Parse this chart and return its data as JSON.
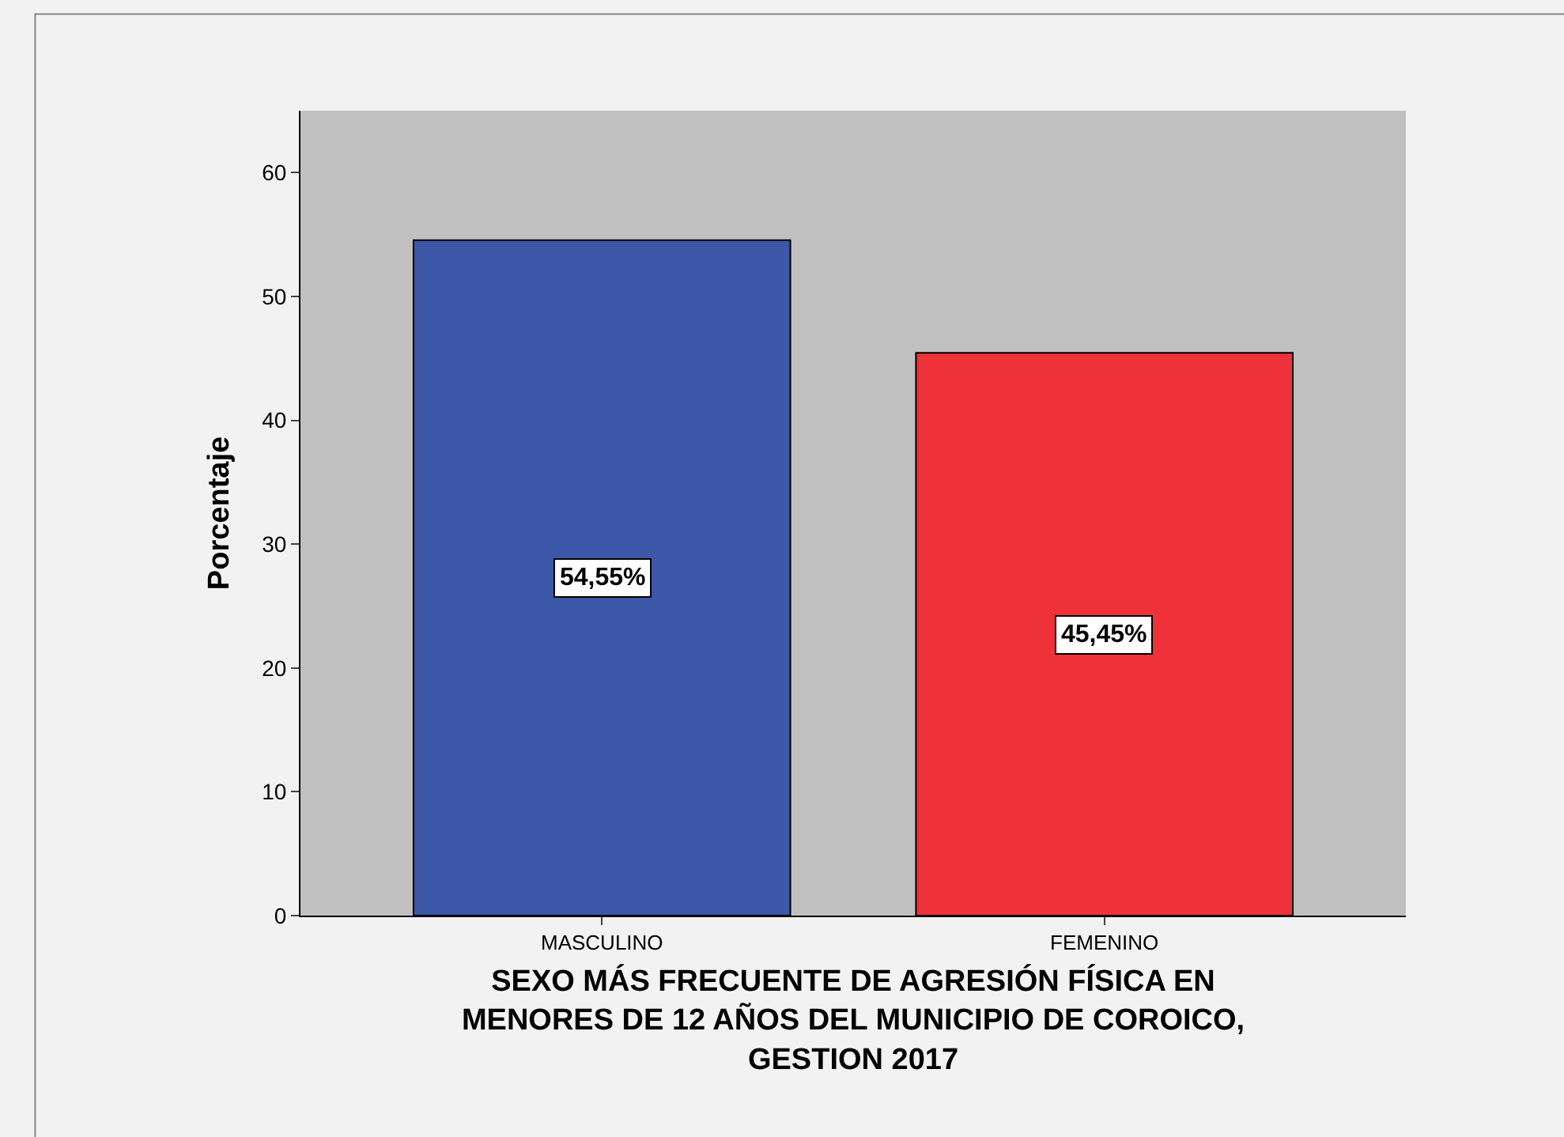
{
  "chart_data": {
    "type": "bar",
    "categories": [
      "MASCULINO",
      "FEMENINO"
    ],
    "values": [
      54.55,
      45.45
    ],
    "colors": [
      "#3c57a8",
      "#ef323a"
    ],
    "value_labels": [
      "54,55%",
      "45,45%"
    ],
    "ylabel": "Porcentaje",
    "xlabel": "SEXO MÁS FRECUENTE DE AGRESIÓN FÍSICA EN\nMENORES DE 12 AÑOS DEL MUNICIPIO DE COROICO,\nGESTION 2017",
    "ylim": [
      0,
      65
    ],
    "yticks": [
      0,
      10,
      20,
      30,
      40,
      50,
      60
    ],
    "grid": false
  }
}
